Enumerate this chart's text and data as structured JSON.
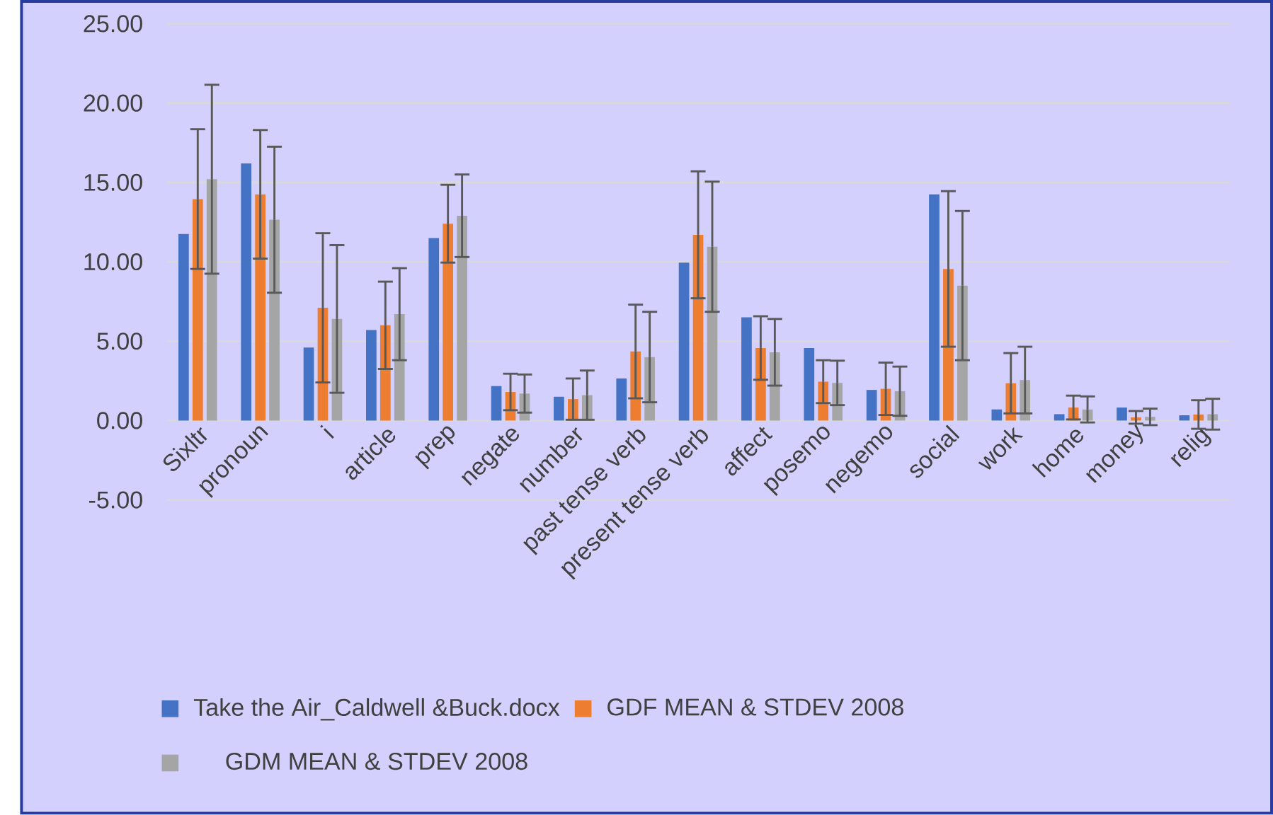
{
  "chart_data": {
    "type": "bar",
    "categories": [
      "Sixltr",
      "pronoun",
      "i",
      "article",
      "prep",
      "negate",
      "number",
      "past tense verb",
      "present tense verb",
      "affect",
      "posemo",
      "negemo",
      "social",
      "work",
      "home",
      "money",
      "relig"
    ],
    "series": [
      {
        "name": "Take the Air_Caldwell &Buck.docx",
        "color": "#4472c4",
        "values": [
          11.75,
          16.2,
          4.6,
          5.7,
          11.5,
          2.17,
          1.5,
          2.65,
          9.95,
          6.5,
          4.57,
          1.93,
          14.25,
          0.7,
          0.4,
          0.82,
          0.33
        ]
      },
      {
        "name": "GDF  MEAN & STDEV 2008",
        "color": "#ed7d31",
        "values": [
          13.95,
          14.25,
          7.1,
          6.0,
          12.4,
          1.8,
          1.35,
          4.35,
          11.7,
          4.57,
          2.45,
          2.0,
          9.55,
          2.35,
          0.82,
          0.2,
          0.38
        ],
        "errors": [
          4.4,
          4.05,
          4.7,
          2.75,
          2.45,
          1.15,
          1.3,
          2.95,
          4.0,
          2.0,
          1.35,
          1.65,
          4.9,
          1.9,
          0.75,
          0.4,
          0.9
        ]
      },
      {
        "name": "GDM MEAN & STDEV 2008",
        "color": "#a5a5a5",
        "values": [
          15.2,
          12.65,
          6.4,
          6.7,
          12.9,
          1.7,
          1.6,
          4.0,
          10.95,
          4.3,
          2.37,
          1.85,
          8.5,
          2.55,
          0.7,
          0.23,
          0.4
        ],
        "errors": [
          5.95,
          4.6,
          4.65,
          2.9,
          2.6,
          1.2,
          1.55,
          2.85,
          4.1,
          2.1,
          1.4,
          1.55,
          4.7,
          2.1,
          0.82,
          0.52,
          0.97
        ]
      }
    ],
    "ylim": [
      -5,
      25
    ],
    "yticks": [
      {
        "value": -5,
        "label": "-5.00"
      },
      {
        "value": 0,
        "label": "0.00"
      },
      {
        "value": 5,
        "label": "5.00"
      },
      {
        "value": 10,
        "label": "10.00"
      },
      {
        "value": 15,
        "label": "15.00"
      },
      {
        "value": 20,
        "label": "20.00"
      },
      {
        "value": 25,
        "label": "25.00"
      }
    ],
    "grid": "y",
    "legend": "bottom"
  }
}
